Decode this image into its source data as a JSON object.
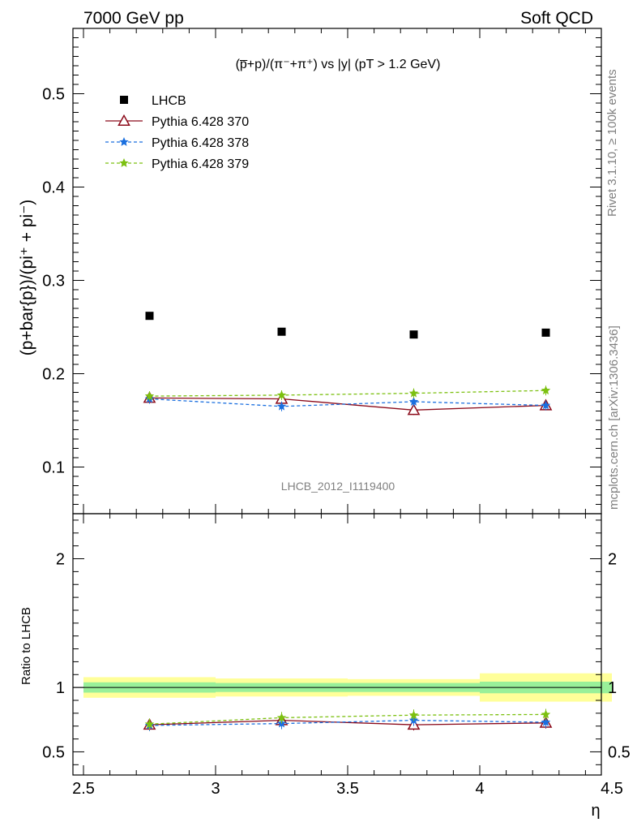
{
  "header": {
    "left": "7000 GeV pp",
    "right": "Soft QCD"
  },
  "side_labels": {
    "rivet": "Rivet 3.1.10, ≥ 100k events",
    "mcplots": "mcplots.cern.ch [arXiv:1306.3436]"
  },
  "chart_data": [
    {
      "type": "scatter",
      "panel": "main",
      "title": "(p̅+p)/(π⁻+π⁺) vs |y| (pT > 1.2 GeV)",
      "ylabel": "(p+bar{p})/(pi⁺ + pi⁻)",
      "xlim": [
        2.5,
        4.5
      ],
      "ylim": [
        0.05,
        0.57
      ],
      "ytick_labels": [
        "0.1",
        "0.2",
        "0.3",
        "0.4",
        "0.5"
      ],
      "analysis_label": "LHCB_2012_I1119400",
      "legend_placement": "top-left",
      "x": [
        2.75,
        3.25,
        3.75,
        4.25
      ],
      "series": [
        {
          "name": "LHCB",
          "values": [
            0.262,
            0.245,
            0.242,
            0.244
          ],
          "color": "#000000",
          "marker": "square",
          "line": "none"
        },
        {
          "name": "Pythia 6.428 370",
          "values": [
            0.174,
            0.173,
            0.161,
            0.166
          ],
          "color": "#8b0a1a",
          "marker": "open-triangle",
          "line": "solid"
        },
        {
          "name": "Pythia 6.428 378",
          "values": [
            0.173,
            0.165,
            0.17,
            0.166
          ],
          "color": "#1a6fdf",
          "marker": "star",
          "line": "dashed"
        },
        {
          "name": "Pythia 6.428 379",
          "values": [
            0.176,
            0.177,
            0.179,
            0.182
          ],
          "color": "#7cc010",
          "marker": "star",
          "line": "dashed"
        }
      ]
    },
    {
      "type": "line",
      "panel": "ratio",
      "ylabel": "Ratio to LHCB",
      "xlabel": "η",
      "xlim": [
        2.5,
        4.5
      ],
      "ylim": [
        0.32,
        2.35
      ],
      "xtick_labels": [
        "2.5",
        "3",
        "3.5",
        "4",
        "4.5"
      ],
      "ytick_labels": [
        "0.5",
        "1",
        "2"
      ],
      "x": [
        2.75,
        3.25,
        3.75,
        4.25
      ],
      "bins": [
        [
          2.5,
          3.0
        ],
        [
          3.0,
          3.5
        ],
        [
          3.5,
          4.0
        ],
        [
          4.0,
          4.5
        ]
      ],
      "band_inner": [
        [
          0.96,
          1.04
        ],
        [
          0.965,
          1.035
        ],
        [
          0.965,
          1.035
        ],
        [
          0.955,
          1.045
        ]
      ],
      "band_outer": [
        [
          0.92,
          1.08
        ],
        [
          0.93,
          1.07
        ],
        [
          0.935,
          1.065
        ],
        [
          0.89,
          1.11
        ]
      ],
      "series": [
        {
          "name": "Pythia 6.428 370",
          "values": [
            0.71,
            0.745,
            0.71,
            0.725
          ],
          "color": "#8b0a1a"
        },
        {
          "name": "Pythia 6.428 378",
          "values": [
            0.705,
            0.72,
            0.745,
            0.73
          ],
          "color": "#1a6fdf"
        },
        {
          "name": "Pythia 6.428 379",
          "values": [
            0.715,
            0.765,
            0.785,
            0.79
          ],
          "color": "#7cc010"
        }
      ]
    }
  ]
}
